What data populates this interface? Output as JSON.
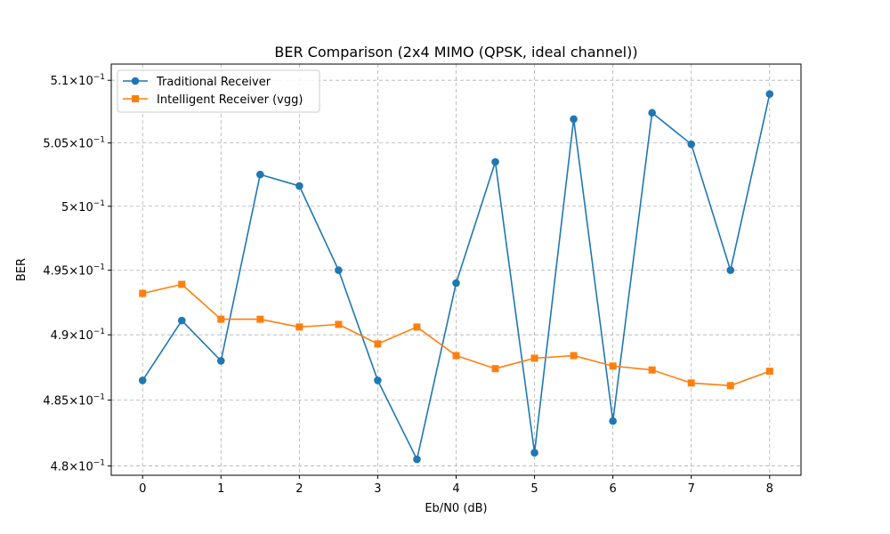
{
  "chart_data": {
    "type": "line",
    "title": "BER Comparison (2x4 MIMO (QPSK, ideal channel))",
    "xlabel": "Eb/N0 (dB)",
    "ylabel": "BER",
    "yscale": "log",
    "grid": true,
    "legend_position": "upper-left",
    "xlim": [
      -0.4,
      8.4
    ],
    "ylim": [
      0.4793,
      0.5113
    ],
    "x_ticks": [
      0,
      1,
      2,
      3,
      4,
      5,
      6,
      7,
      8
    ],
    "x_tick_labels": [
      "0",
      "1",
      "2",
      "3",
      "4",
      "5",
      "6",
      "7",
      "8"
    ],
    "y_ticks": [
      0.48,
      0.485,
      0.49,
      0.495,
      0.5,
      0.505,
      0.51
    ],
    "y_tick_labels": [
      {
        "mantissa": "4.8",
        "times": "×",
        "base": "10",
        "exp": "−1"
      },
      {
        "mantissa": "4.85",
        "times": "×",
        "base": "10",
        "exp": "−1"
      },
      {
        "mantissa": "4.9",
        "times": "×",
        "base": "10",
        "exp": "−1"
      },
      {
        "mantissa": "4.95",
        "times": "×",
        "base": "10",
        "exp": "−1"
      },
      {
        "mantissa": "5",
        "times": "×",
        "base": "10",
        "exp": "−1"
      },
      {
        "mantissa": "5.05",
        "times": "×",
        "base": "10",
        "exp": "−1"
      },
      {
        "mantissa": "5.1",
        "times": "×",
        "base": "10",
        "exp": "−1"
      }
    ],
    "x": [
      0,
      0.5,
      1,
      1.5,
      2,
      2.5,
      3,
      3.5,
      4,
      4.5,
      5,
      5.5,
      6,
      6.5,
      7,
      7.5,
      8
    ],
    "series": [
      {
        "name": "Traditional Receiver",
        "color": "#1f77b4",
        "marker": "circle",
        "values": [
          0.4865,
          0.4911,
          0.488,
          0.5025,
          0.5016,
          0.495,
          0.4865,
          0.4805,
          0.494,
          0.5035,
          0.481,
          0.5069,
          0.4834,
          0.5074,
          0.5049,
          0.495,
          0.5089
        ]
      },
      {
        "name": "Intelligent Receiver (vgg)",
        "color": "#ff7f0e",
        "marker": "square",
        "values": [
          0.4932,
          0.4939,
          0.4912,
          0.4912,
          0.4906,
          0.4908,
          0.4893,
          0.4906,
          0.4884,
          0.4874,
          0.4882,
          0.4884,
          0.4876,
          0.4873,
          0.4863,
          0.4861,
          0.4872
        ]
      }
    ]
  }
}
